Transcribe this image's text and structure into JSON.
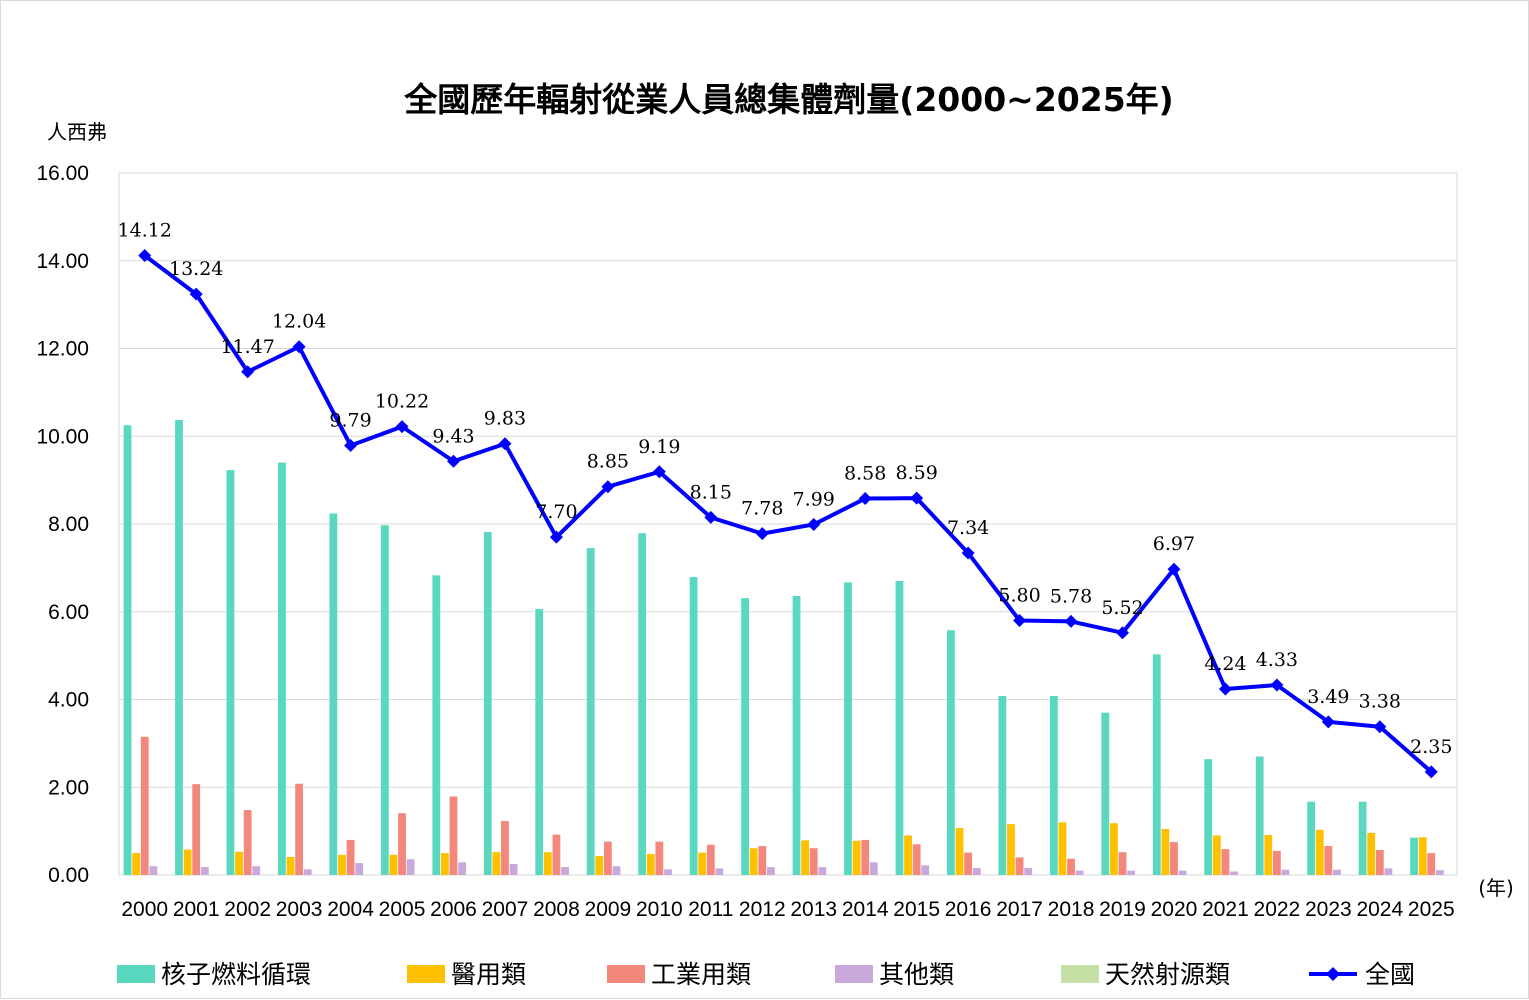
{
  "chart_data": {
    "type": "bar",
    "title": "全國歷年輻射從業人員總集體劑量(2000~2025年)",
    "ylabel": "人西弗",
    "xlabel": "(年)",
    "ylim": [
      0,
      16
    ],
    "yticks": [
      "0.00",
      "2.00",
      "4.00",
      "6.00",
      "8.00",
      "10.00",
      "12.00",
      "14.00",
      "16.00"
    ],
    "grid": true,
    "legend_position": "bottom",
    "categories": [
      "2000",
      "2001",
      "2002",
      "2003",
      "2004",
      "2005",
      "2006",
      "2007",
      "2008",
      "2009",
      "2010",
      "2011",
      "2012",
      "2013",
      "2014",
      "2015",
      "2016",
      "2017",
      "2018",
      "2019",
      "2020",
      "2021",
      "2022",
      "2023",
      "2024",
      "2025"
    ],
    "series": [
      {
        "name": "核子燃料循環",
        "type": "bar",
        "color": "#5ad8bf",
        "values": [
          10.25,
          10.37,
          9.23,
          9.4,
          8.24,
          7.97,
          6.83,
          7.82,
          6.06,
          7.45,
          7.79,
          6.79,
          6.31,
          6.36,
          6.67,
          6.7,
          5.58,
          4.08,
          4.08,
          3.7,
          5.03,
          2.64,
          2.7,
          1.67,
          1.67,
          0.85
        ]
      },
      {
        "name": "醫用類",
        "type": "bar",
        "color": "#ffc000",
        "values": [
          0.5,
          0.58,
          0.53,
          0.41,
          0.46,
          0.46,
          0.5,
          0.52,
          0.52,
          0.43,
          0.48,
          0.51,
          0.61,
          0.79,
          0.78,
          0.9,
          1.07,
          1.16,
          1.2,
          1.18,
          1.05,
          0.9,
          0.91,
          1.03,
          0.96,
          0.86
        ]
      },
      {
        "name": "工業用類",
        "type": "bar",
        "color": "#f4877c",
        "values": [
          3.15,
          2.07,
          1.48,
          2.08,
          0.8,
          1.41,
          1.79,
          1.23,
          0.92,
          0.76,
          0.76,
          0.69,
          0.66,
          0.61,
          0.8,
          0.7,
          0.51,
          0.4,
          0.37,
          0.52,
          0.75,
          0.59,
          0.55,
          0.66,
          0.57,
          0.5
        ]
      },
      {
        "name": "其他類",
        "type": "bar",
        "color": "#c9a8dc",
        "values": [
          0.2,
          0.18,
          0.2,
          0.13,
          0.27,
          0.36,
          0.29,
          0.25,
          0.18,
          0.2,
          0.13,
          0.15,
          0.18,
          0.18,
          0.29,
          0.22,
          0.16,
          0.16,
          0.1,
          0.1,
          0.1,
          0.08,
          0.12,
          0.12,
          0.15,
          0.11
        ]
      },
      {
        "name": "天然射源類",
        "type": "bar",
        "color": "#c5e0a5",
        "values": [
          0,
          0,
          0,
          0,
          0,
          0,
          0,
          0,
          0,
          0,
          0,
          0,
          0,
          0,
          0,
          0,
          0,
          0,
          0,
          0,
          0,
          0,
          0,
          0,
          0,
          0
        ]
      },
      {
        "name": "全國",
        "type": "line",
        "color": "#0000ff",
        "values": [
          14.12,
          13.24,
          11.47,
          12.04,
          9.79,
          10.22,
          9.43,
          9.83,
          7.7,
          8.85,
          9.19,
          8.15,
          7.78,
          7.99,
          8.58,
          8.59,
          7.34,
          5.8,
          5.78,
          5.52,
          6.97,
          4.24,
          4.33,
          3.49,
          3.38,
          2.35
        ],
        "labels": [
          "14.12",
          "13.24",
          "11.47",
          "12.04",
          "9.79",
          "10.22",
          "9.43",
          "9.83",
          "7.70",
          "8.85",
          "9.19",
          "8.15",
          "7.78",
          "7.99",
          "8.58",
          "8.59",
          "7.34",
          "5.80",
          "5.78",
          "5.52",
          "6.97",
          "4.24",
          "4.33",
          "3.49",
          "3.38",
          "2.35"
        ]
      }
    ]
  }
}
